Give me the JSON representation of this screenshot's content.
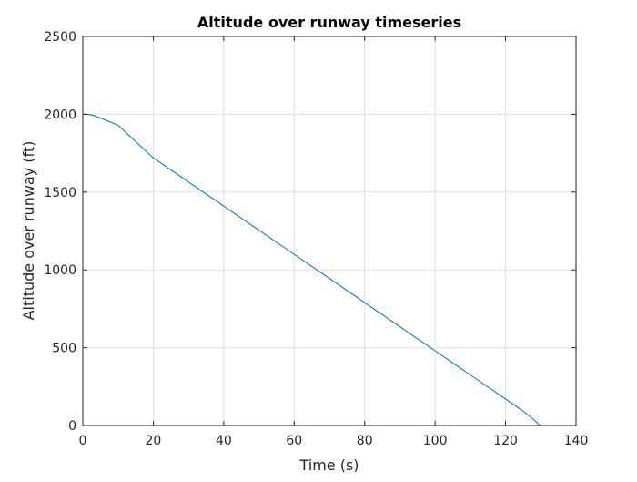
{
  "chart_data": {
    "type": "line",
    "title": "Altitude over runway timeseries",
    "xlabel": "Time (s)",
    "ylabel": "Altitude over runway (ft)",
    "xlim": [
      0,
      140
    ],
    "ylim": [
      0,
      2500
    ],
    "xticks": [
      0,
      20,
      40,
      60,
      80,
      100,
      120,
      140
    ],
    "yticks": [
      0,
      500,
      1000,
      1500,
      2000,
      2500
    ],
    "grid": true,
    "legend": "none",
    "series": [
      {
        "color": "#0072BD",
        "x": [
          0,
          1,
          2,
          2.5,
          3,
          3.5,
          4,
          5,
          10,
          20,
          30,
          40,
          50,
          60,
          70,
          80,
          90,
          100,
          110,
          120,
          125,
          128,
          129,
          129.5,
          130
        ],
        "y": [
          2000,
          2000,
          1998,
          1996,
          1993,
          1989,
          1984,
          1976,
          1930,
          1720,
          1565,
          1410,
          1255,
          1100,
          945,
          790,
          635,
          480,
          325,
          170,
          92,
          38,
          16,
          6,
          0
        ]
      }
    ]
  }
}
